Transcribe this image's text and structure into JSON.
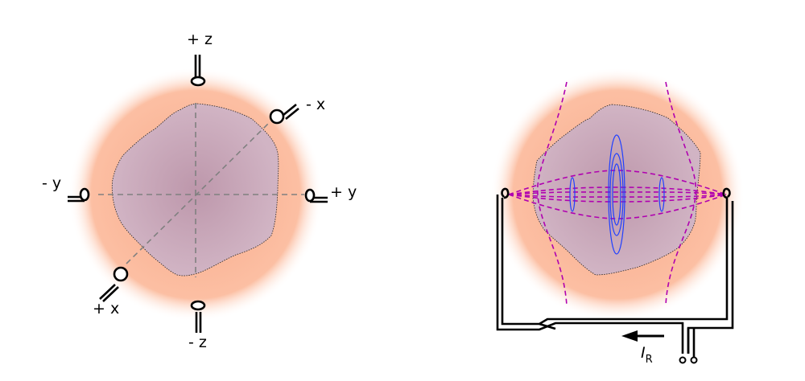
{
  "left_diagram": {
    "labels": {
      "plus_z": "+ z",
      "minus_z": "- z",
      "minus_x": "- x",
      "plus_x": "+ x",
      "minus_y": "- y",
      "plus_y": "+ y"
    }
  },
  "right_diagram": {
    "current_symbol": "I",
    "current_subscript": "R"
  },
  "colors": {
    "halo": "#fbb89a",
    "plasma": "#c3a0b4",
    "field_lines": "#b000b0",
    "flux_surfaces": "#2040ff",
    "wire": "#000000",
    "axes": "#808080"
  }
}
